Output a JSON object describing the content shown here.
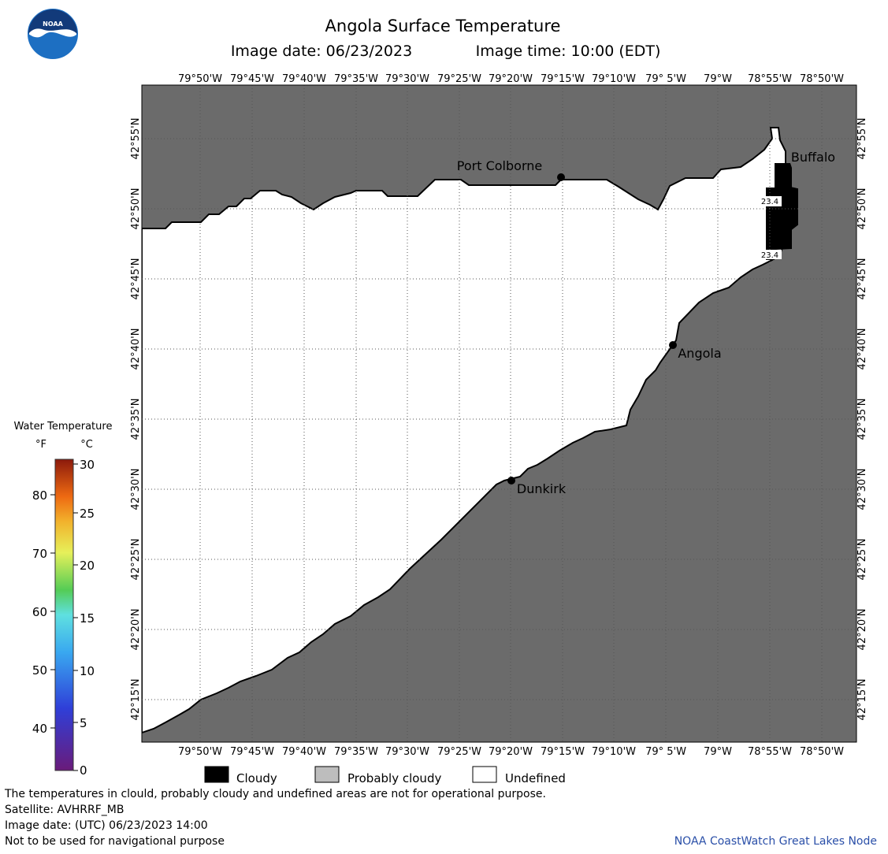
{
  "title": "Angola Surface Temperature",
  "image_date_label": "Image date: 06/23/2023",
  "image_time_label": "Image time: 10:00 (EDT)",
  "logo_text": "NOAA",
  "legend": {
    "title": "Water Temperature",
    "unit_f": "°F",
    "unit_c": "°C",
    "f_ticks": [
      "80",
      "70",
      "60",
      "50",
      "40"
    ],
    "c_ticks": [
      "30",
      "25",
      "20",
      "15",
      "10",
      "5",
      "0"
    ]
  },
  "longitude_ticks": [
    "79°50'W",
    "79°45'W",
    "79°40'W",
    "79°35'W",
    "79°30'W",
    "79°25'W",
    "79°20'W",
    "79°15'W",
    "79°10'W",
    "79° 5'W",
    "79°W",
    "78°55'W",
    "78°50'W"
  ],
  "latitude_ticks": [
    "42°55'N",
    "42°50'N",
    "42°45'N",
    "42°40'N",
    "42°35'N",
    "42°30'N",
    "42°25'N",
    "42°20'N",
    "42°15'N"
  ],
  "places": [
    {
      "name": "Port Colborne"
    },
    {
      "name": "Buffalo"
    },
    {
      "name": "Angola"
    },
    {
      "name": "Dunkirk"
    }
  ],
  "cloud_values": [
    "23.4",
    "23.4"
  ],
  "key": {
    "cloudy": "Cloudy",
    "probably_cloudy": "Probably cloudy",
    "undefined": "Undefined"
  },
  "footer": {
    "disclaimer": "The temperatures in clould, probably cloudy and undefined areas are not for operational purpose.",
    "satellite": "Satellite: AVHRRF_MB",
    "utc_date": "Image date: (UTC) 06/23/2023  14:00",
    "nav_warning": "Not to be used for navigational purpose",
    "credit": "NOAA CoastWatch Great Lakes Node"
  },
  "colors": {
    "land": "#6b6b6b",
    "cloud": "#000000",
    "undefined": "#ffffff",
    "probably_cloudy": "#bdbdbd",
    "credit": "#2a4fa8"
  }
}
